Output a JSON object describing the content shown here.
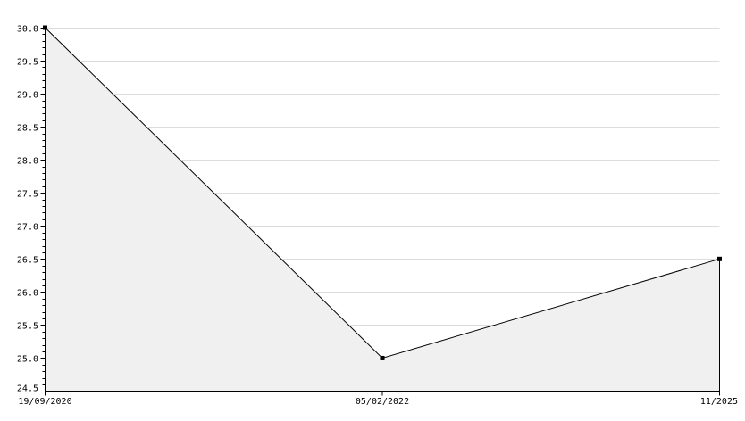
{
  "chart_data": {
    "type": "area",
    "categories": [
      "19/09/2020",
      "05/02/2022",
      "11/2025"
    ],
    "values": [
      30.0,
      25.0,
      26.5
    ],
    "title": "",
    "xlabel": "",
    "ylabel": "",
    "ylim": [
      24.5,
      30.0
    ],
    "yticks": [
      "24.5",
      "25.0",
      "25.5",
      "26.0",
      "26.5",
      "27.0",
      "27.5",
      "28.0",
      "28.5",
      "29.0",
      "29.5",
      "30.0"
    ],
    "grid": true,
    "colors": {
      "line": "#000000",
      "fill": "#f0f0f0",
      "grid": "#dcdcdc",
      "marker": "#000000"
    }
  }
}
